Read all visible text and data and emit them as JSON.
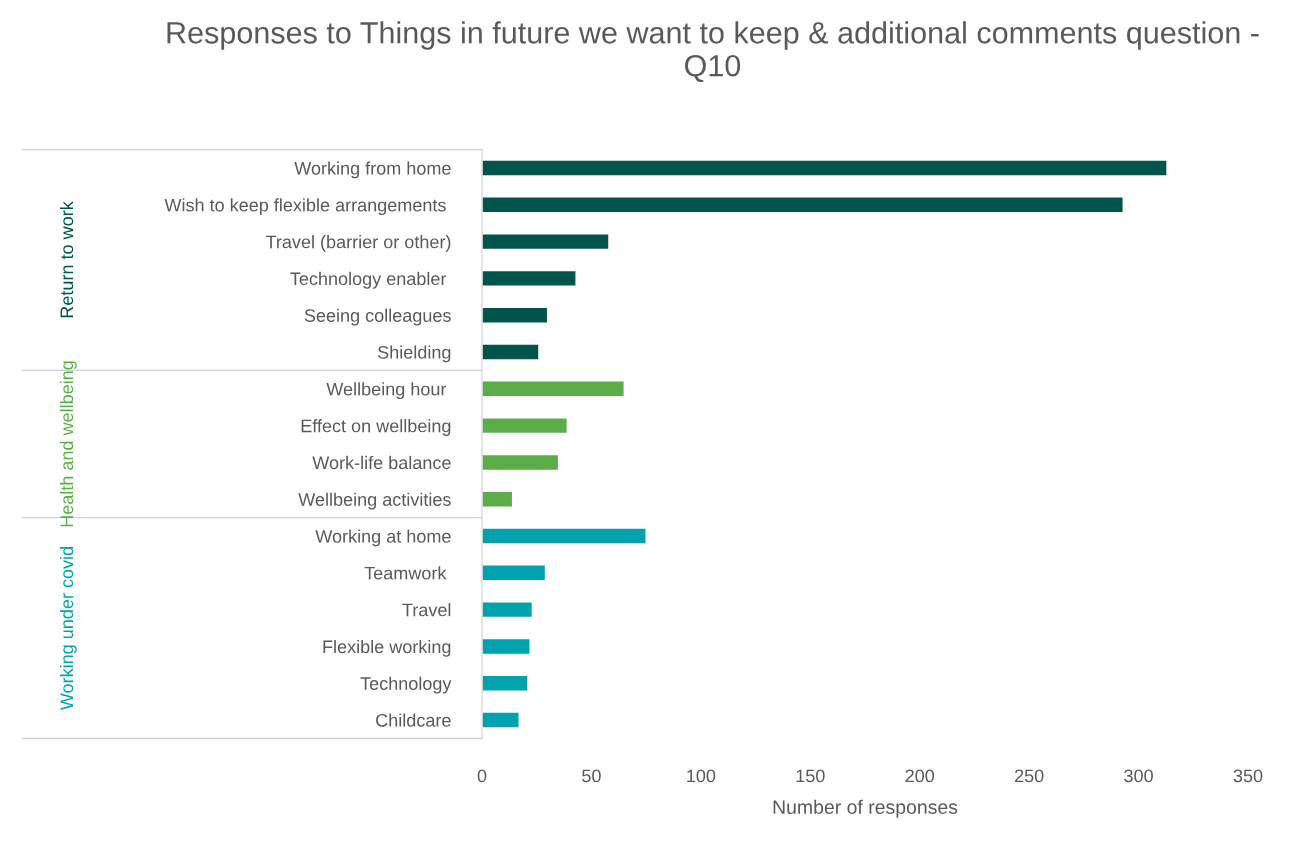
{
  "chart_data": {
    "type": "bar",
    "orientation": "horizontal",
    "title": "Responses to Things in future we want to keep & additional comments question - Q10",
    "xlabel": "Number of responses",
    "categories": [
      "Working from home",
      "Wish to keep flexible arrangements ",
      "Travel (barrier or other)",
      "Technology enabler ",
      "Seeing colleagues",
      "Shielding",
      "Wellbeing hour ",
      "Effect on wellbeing",
      "Work-life balance",
      "Wellbeing activities",
      "Working at home",
      "Teamwork ",
      "Travel",
      "Flexible working",
      "Technology",
      "Childcare"
    ],
    "series": [
      {
        "name": "Return to work",
        "color": "#00544a",
        "values": [
          313,
          293,
          58,
          43,
          30,
          26,
          null,
          null,
          null,
          null,
          null,
          null,
          null,
          null,
          null,
          null
        ]
      },
      {
        "name": "Health and wellbeing",
        "color": "#5aad47",
        "values": [
          null,
          null,
          null,
          null,
          null,
          null,
          65,
          39,
          35,
          14,
          null,
          null,
          null,
          null,
          null,
          null
        ]
      },
      {
        "name": "Working under covid",
        "color": "#00a3ad",
        "values": [
          null,
          null,
          null,
          null,
          null,
          null,
          null,
          null,
          null,
          null,
          75,
          29,
          23,
          22,
          21,
          17
        ]
      }
    ],
    "xlim": [
      0,
      350
    ],
    "xticks": [
      0,
      50,
      100,
      150,
      200,
      250,
      300,
      350
    ],
    "grid": false,
    "legend": false
  }
}
